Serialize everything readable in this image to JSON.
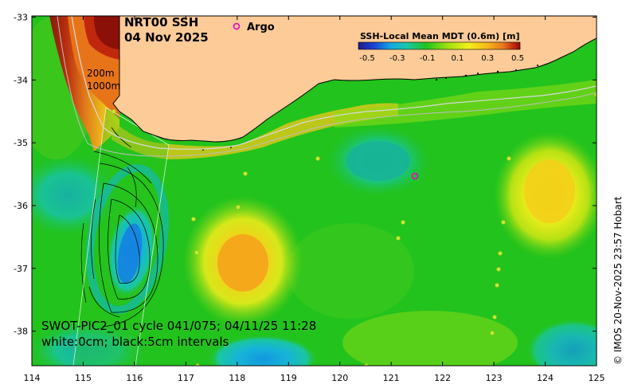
{
  "title": {
    "line1": "NRT00 SSH",
    "line2": "04 Nov 2025"
  },
  "argo_legend": {
    "label": "Argo",
    "symbol": "o",
    "color": "#e600c8"
  },
  "legend": {
    "title": "SSH-Local Mean MDT (0.6m) [m]",
    "ticks": [
      "-0.5",
      "-0.3",
      "-0.1",
      "0.1",
      "0.3",
      "0.5"
    ],
    "colors": [
      "#1a1a8c",
      "#1846d8",
      "#12a8e0",
      "#19c8a8",
      "#1fc41f",
      "#9fe010",
      "#f2f01a",
      "#f6b61a",
      "#e8741a",
      "#c0280e",
      "#8a1008"
    ]
  },
  "contours": {
    "label_200": "200m",
    "label_1000": "1000m"
  },
  "caption": {
    "line1": "SWOT-PIC2_01 cycle 041/075; 04/11/25 11:28",
    "line2": "white:0cm; black:5cm intervals"
  },
  "credit": "© IMOS 20-Nov-2025 23:57 Hobart",
  "axes": {
    "x_ticks": [
      "114",
      "115",
      "116",
      "117",
      "118",
      "119",
      "120",
      "121",
      "122",
      "123",
      "124",
      "125"
    ],
    "y_ticks": [
      "-33",
      "-34",
      "-35",
      "-36",
      "-37",
      "-38"
    ],
    "x_range": [
      114,
      125
    ],
    "y_range": [
      -38.55,
      -32.98
    ]
  },
  "colors": {
    "land": "#fdcb97",
    "ocean_base": "#22c31c"
  }
}
